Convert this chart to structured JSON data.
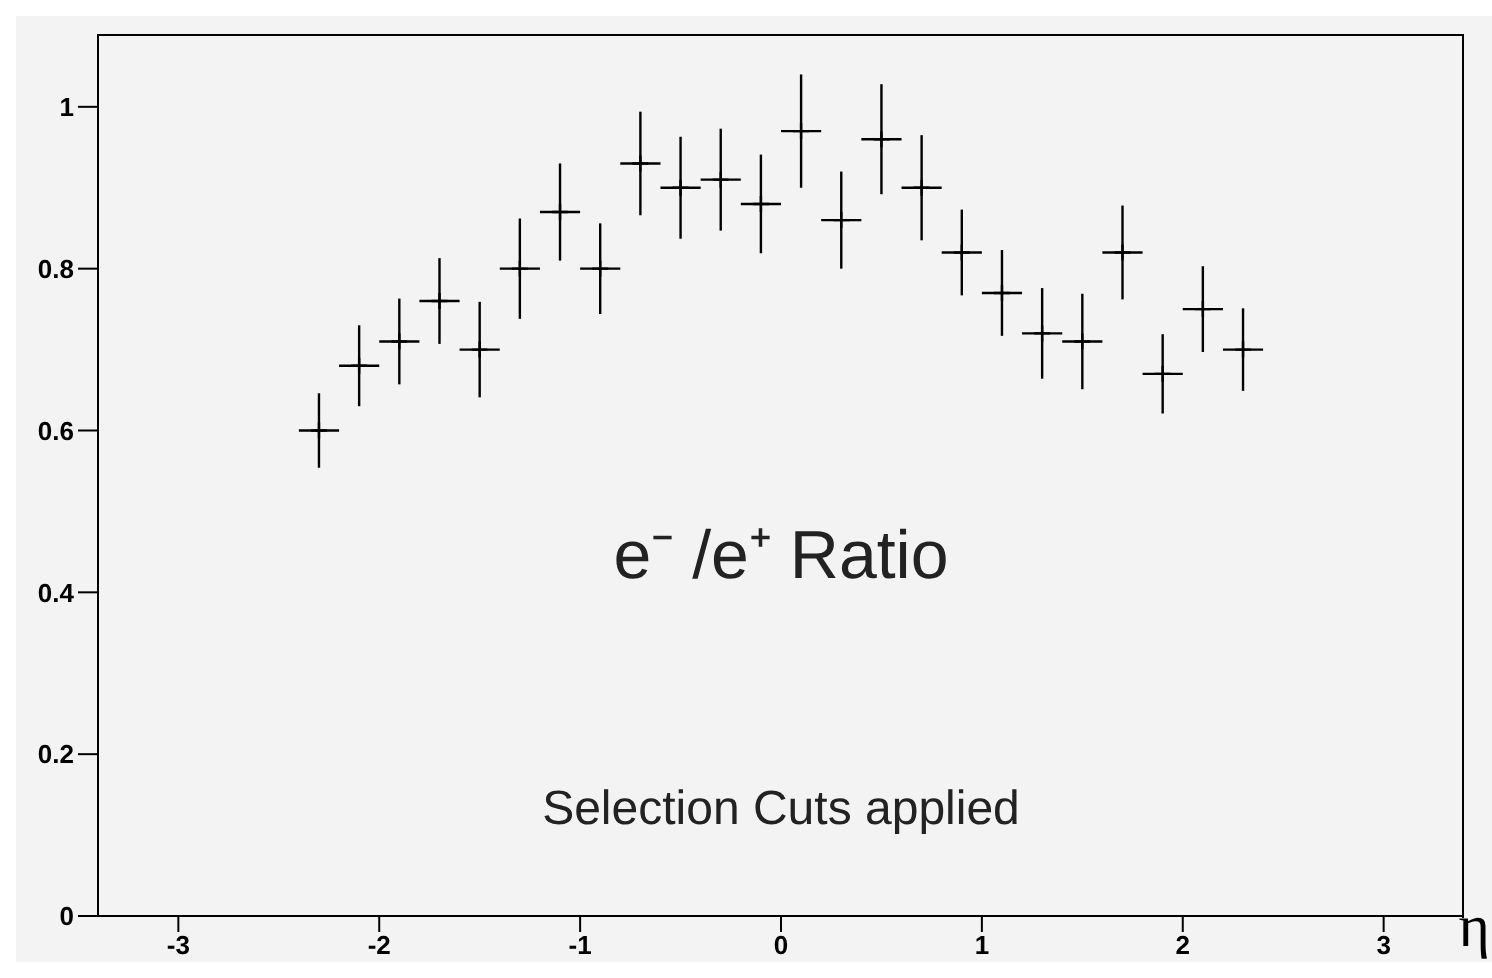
{
  "chart_data": {
    "type": "scatter",
    "xlabel": "η",
    "annotations": [
      "e⁻ /e⁺ Ratio",
      "Selection Cuts applied"
    ],
    "x": [
      -2.3,
      -2.1,
      -1.9,
      -1.7,
      -1.5,
      -1.3,
      -1.1,
      -0.9,
      -0.7,
      -0.5,
      -0.3,
      -0.1,
      0.1,
      0.3,
      0.5,
      0.7,
      0.9,
      1.1,
      1.3,
      1.5,
      1.7,
      1.9,
      2.1,
      2.3
    ],
    "series": [
      {
        "color": "#000000",
        "values": [
          0.6,
          0.68,
          0.71,
          0.76,
          0.7,
          0.8,
          0.87,
          0.8,
          0.93,
          0.9,
          0.91,
          0.88,
          0.97,
          0.86,
          0.96,
          0.9,
          0.82,
          0.77,
          0.72,
          0.71,
          0.82,
          0.67,
          0.75,
          0.7
        ],
        "errors": [
          0.046,
          0.05,
          0.053,
          0.053,
          0.059,
          0.062,
          0.06,
          0.056,
          0.064,
          0.063,
          0.063,
          0.061,
          0.07,
          0.06,
          0.068,
          0.065,
          0.053,
          0.053,
          0.056,
          0.059,
          0.058,
          0.049,
          0.053,
          0.051
        ],
        "xerrors": [
          0.1,
          0.1,
          0.1,
          0.1,
          0.1,
          0.1,
          0.1,
          0.1,
          0.1,
          0.1,
          0.1,
          0.1,
          0.1,
          0.1,
          0.1,
          0.1,
          0.1,
          0.1,
          0.1,
          0.1,
          0.1,
          0.1,
          0.1,
          0.1
        ]
      }
    ],
    "xlim": [
      -3.4,
      3.4
    ],
    "xticks": [
      -3,
      -2,
      -1,
      0,
      1,
      2,
      3
    ],
    "ylim": [
      0,
      1.09
    ],
    "yticks": [
      0,
      0.2,
      0.4,
      0.6,
      0.8,
      1
    ],
    "marker": "cross",
    "grid": false,
    "legend": false
  }
}
